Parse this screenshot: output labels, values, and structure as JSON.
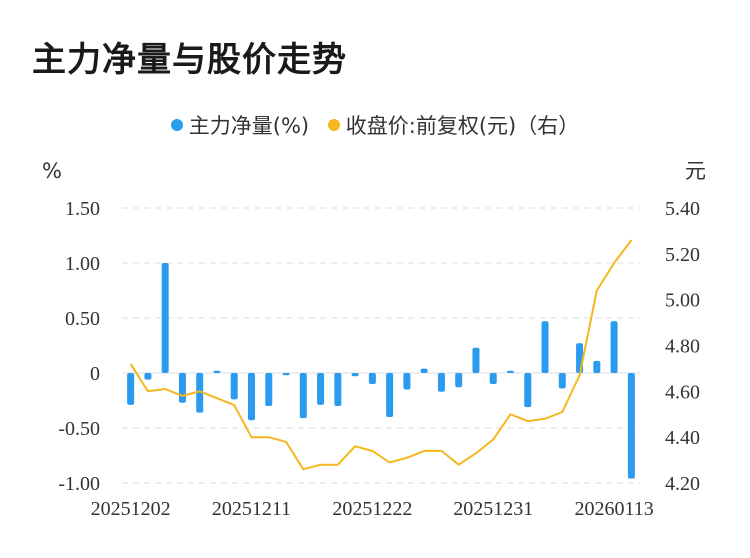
{
  "title": "主力净量与股价走势",
  "legend": {
    "bar_label": "主力净量(%)",
    "line_label": "收盘价:前复权(元)（右）"
  },
  "colors": {
    "bar": "#2b9bf0",
    "line": "#f4b71e",
    "grid": "#dddddd"
  },
  "chart_data": {
    "type": "bar+line",
    "title": "主力净量与股价走势",
    "y_left_label": "%",
    "y_right_label": "元",
    "y_left_range": [
      -1.0,
      1.5
    ],
    "y_left_ticks": [
      "1.50",
      "1.00",
      "0.50",
      "0",
      "-0.50",
      "-1.00"
    ],
    "y_right_range": [
      4.2,
      5.4
    ],
    "y_right_ticks": [
      "5.40",
      "5.20",
      "5.00",
      "4.80",
      "4.60",
      "4.40",
      "4.20"
    ],
    "x_tick_labels": [
      "20251202",
      "20251211",
      "20251222",
      "20251231",
      "20260113"
    ],
    "x_tick_indices": [
      0,
      7,
      14,
      21,
      28
    ],
    "series": [
      {
        "name": "主力净量(%)",
        "axis": "left",
        "type": "bar",
        "values": [
          -0.29,
          -0.06,
          1.0,
          -0.27,
          -0.36,
          0.02,
          -0.24,
          -0.43,
          -0.3,
          -0.02,
          -0.41,
          -0.29,
          -0.3,
          -0.03,
          -0.1,
          -0.4,
          -0.15,
          0.04,
          -0.17,
          -0.13,
          0.23,
          -0.1,
          0.02,
          -0.31,
          0.47,
          -0.14,
          0.27,
          0.11,
          0.47,
          -0.96
        ]
      },
      {
        "name": "收盘价:前复权(元)（右）",
        "axis": "right",
        "type": "line",
        "values": [
          4.72,
          4.6,
          4.61,
          4.58,
          4.6,
          4.57,
          4.54,
          4.4,
          4.4,
          4.38,
          4.26,
          4.28,
          4.28,
          4.36,
          4.34,
          4.29,
          4.31,
          4.34,
          4.34,
          4.28,
          4.33,
          4.39,
          4.5,
          4.47,
          4.48,
          4.51,
          4.67,
          5.04,
          5.16,
          5.26
        ]
      }
    ]
  }
}
